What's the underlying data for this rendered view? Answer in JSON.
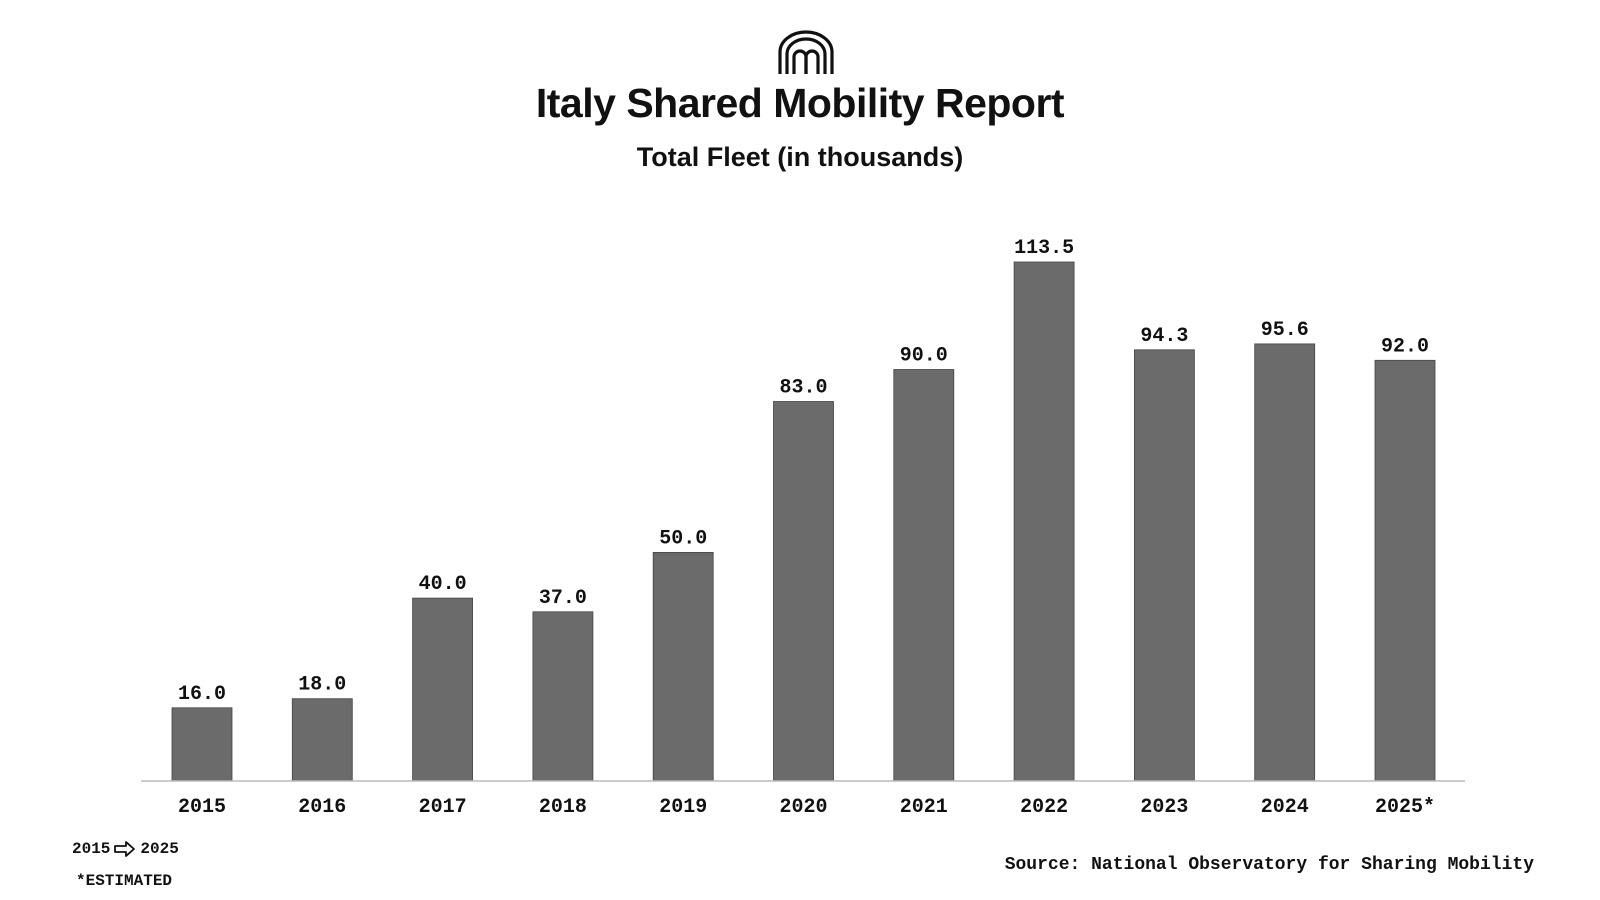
{
  "header": {
    "logo_icon": "arches-logo-icon",
    "title": "Italy Shared Mobility Report",
    "subtitle": "Total Fleet (in thousands)"
  },
  "chart_data": {
    "type": "bar",
    "title": "Italy Shared Mobility Report",
    "subtitle": "Total Fleet (in thousands)",
    "categories": [
      "2015",
      "2016",
      "2017",
      "2018",
      "2019",
      "2020",
      "2021",
      "2022",
      "2023",
      "2024",
      "2025*"
    ],
    "values": [
      16.0,
      18.0,
      40.0,
      37.0,
      50.0,
      83.0,
      90.0,
      113.5,
      94.3,
      95.6,
      92.0
    ],
    "value_labels": [
      "16.0",
      "18.0",
      "40.0",
      "37.0",
      "50.0",
      "83.0",
      "90.0",
      "113.5",
      "94.3",
      "95.6",
      "92.0"
    ],
    "xlabel": "",
    "ylabel": "",
    "ylim": [
      0,
      113.5
    ],
    "grid": false,
    "bar_color": "#6b6b6b",
    "axis_color": "#bbbbbb"
  },
  "footer": {
    "range_start": "2015",
    "range_arrow_icon": "right-arrow-icon",
    "range_end": "2025",
    "estimated_note": "*ESTIMATED",
    "source": "Source: National Observatory for Sharing Mobility"
  }
}
